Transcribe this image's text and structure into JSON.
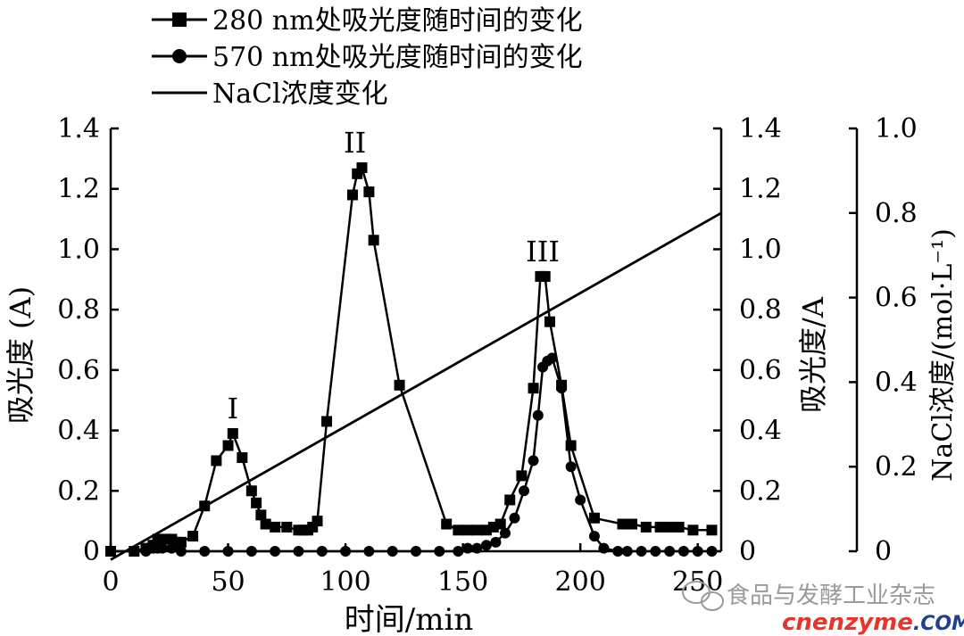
{
  "chart_data": {
    "type": "line",
    "x_label": "时间/min",
    "y_label_left": "吸光度 (A)",
    "y_label_right1": "吸光度/A",
    "y_label_right2": "NaCl浓度/(mol·L⁻¹)",
    "xlim": [
      0,
      260
    ],
    "ylim_absorbance": [
      0,
      1.4
    ],
    "ylim_nacl": [
      0,
      1.0
    ],
    "x_ticks": [
      "0",
      "50",
      "100",
      "150",
      "200",
      "250"
    ],
    "x_tick_values": [
      0,
      50,
      100,
      150,
      200,
      250
    ],
    "y_ticks_absorbance": [
      "0",
      "0.2",
      "0.4",
      "0.6",
      "0.8",
      "1.0",
      "1.2",
      "1.4"
    ],
    "y_tick_values_absorbance": [
      0,
      0.2,
      0.4,
      0.6,
      0.8,
      1.0,
      1.2,
      1.4
    ],
    "y_ticks_nacl": [
      "0",
      "0.2",
      "0.4",
      "0.6",
      "0.8",
      "1.0"
    ],
    "y_tick_values_nacl": [
      0,
      0.2,
      0.4,
      0.6,
      0.8,
      1.0
    ],
    "legend_placement": "top-left, above plot",
    "series": [
      {
        "name": "280 nm处吸光度随时间的变化",
        "marker": "square",
        "axis": "absorbance",
        "x": [
          0,
          10,
          15,
          18,
          20,
          22,
          24,
          26,
          28,
          30,
          35,
          40,
          45,
          50,
          52,
          56,
          60,
          62,
          64,
          66,
          70,
          75,
          80,
          82,
          84,
          86,
          88,
          92,
          103,
          105,
          107,
          110,
          112,
          123,
          143,
          148,
          152,
          156,
          160,
          163,
          166,
          170,
          175,
          180,
          183,
          185,
          187,
          192,
          196,
          206,
          218,
          222,
          228,
          234,
          238,
          242,
          248,
          256
        ],
        "y": [
          0,
          0,
          0.01,
          0.02,
          0.04,
          0.04,
          0.04,
          0.04,
          0.03,
          0.03,
          0.05,
          0.15,
          0.3,
          0.35,
          0.39,
          0.31,
          0.2,
          0.16,
          0.12,
          0.09,
          0.08,
          0.08,
          0.07,
          0.07,
          0.07,
          0.08,
          0.1,
          0.43,
          1.18,
          1.25,
          1.27,
          1.19,
          1.03,
          0.55,
          0.09,
          0.07,
          0.07,
          0.07,
          0.07,
          0.08,
          0.09,
          0.17,
          0.25,
          0.54,
          0.91,
          0.91,
          0.76,
          0.55,
          0.35,
          0.11,
          0.09,
          0.09,
          0.08,
          0.08,
          0.08,
          0.08,
          0.07,
          0.07
        ]
      },
      {
        "name": "570 nm处吸光度随时间的变化",
        "marker": "circle",
        "axis": "absorbance",
        "x": [
          0,
          10,
          15,
          18,
          20,
          22,
          26,
          30,
          40,
          50,
          60,
          70,
          80,
          90,
          100,
          110,
          120,
          130,
          140,
          148,
          152,
          156,
          160,
          164,
          168,
          172,
          176,
          180,
          182,
          184,
          186,
          188,
          192,
          196,
          200,
          206,
          210,
          216,
          220,
          226,
          232,
          238,
          244,
          250,
          256
        ],
        "y": [
          0,
          0,
          0,
          0.01,
          0.01,
          0.01,
          0.01,
          0,
          0,
          0,
          0,
          0,
          0,
          0,
          0,
          0,
          0,
          0,
          0,
          0,
          0.01,
          0.01,
          0.02,
          0.03,
          0.06,
          0.11,
          0.2,
          0.3,
          0.45,
          0.61,
          0.63,
          0.64,
          0.54,
          0.28,
          0.17,
          0.05,
          0.01,
          0,
          0,
          0,
          0,
          0,
          0,
          0,
          0
        ]
      },
      {
        "name": "NaCl浓度变化",
        "marker": "none",
        "axis": "nacl",
        "x": [
          0,
          260
        ],
        "y": [
          -0.02,
          0.8
        ]
      }
    ],
    "annotations": [
      {
        "text": "I",
        "x": 52,
        "y": 0.44
      },
      {
        "text": "II",
        "x": 104,
        "y": 1.32
      },
      {
        "text": "III",
        "x": 184,
        "y": 0.96
      }
    ]
  },
  "watermark": {
    "wechat_text": "食品与发酵工业杂志",
    "site_text": "cnenzyme",
    "site_suffix": ".COM"
  }
}
